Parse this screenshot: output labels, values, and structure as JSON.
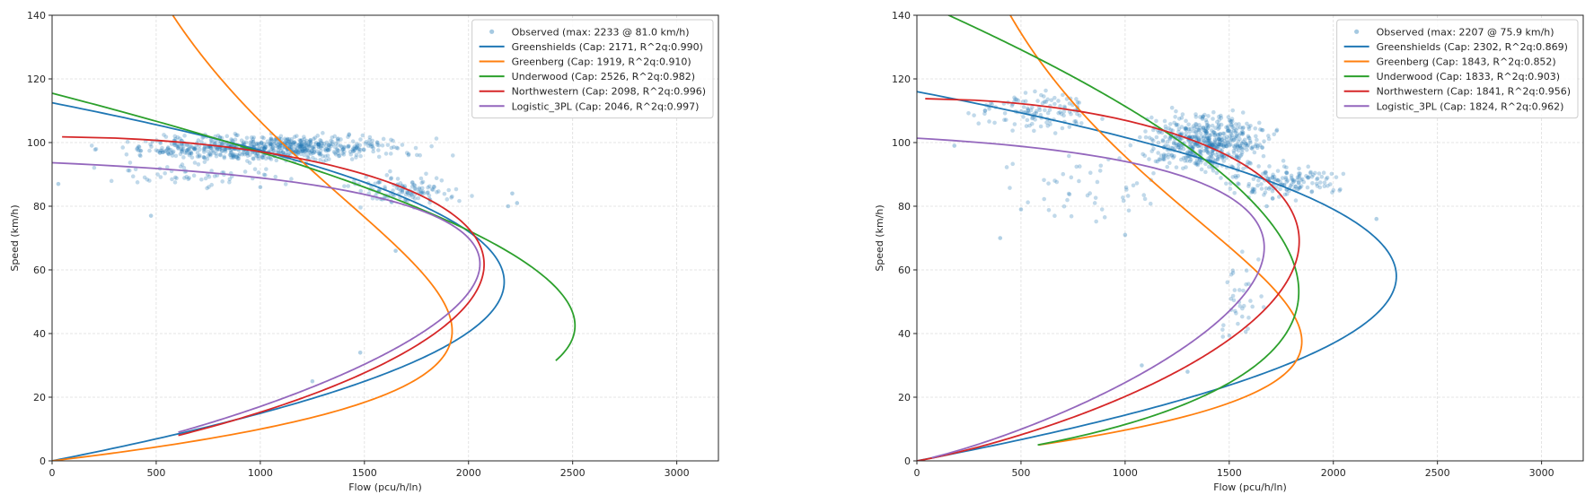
{
  "chart_data": [
    {
      "type": "scatter",
      "xlabel": "Flow (pcu/h/ln)",
      "ylabel": "Speed (km/h)",
      "xlim": [
        0,
        3200
      ],
      "ylim": [
        0,
        140
      ],
      "xticks": [
        0,
        500,
        1000,
        1500,
        2000,
        2500,
        3000
      ],
      "yticks": [
        0,
        20,
        40,
        60,
        80,
        100,
        120,
        140
      ],
      "grid": true,
      "legend_position": "top-right",
      "observed": {
        "label": "Observed (max: 2233 @ 81.0 km/h)",
        "color": "#1f77b4",
        "clusters": [
          {
            "x": [
              100,
              1950
            ],
            "y": [
              93,
              104
            ],
            "n": 700
          },
          {
            "x": [
              1300,
              2100
            ],
            "y": [
              78,
              92
            ],
            "n": 120
          },
          {
            "x": [
              100,
              1300
            ],
            "y": [
              85,
              95
            ],
            "n": 60
          }
        ],
        "points": [
          {
            "x": 2233,
            "y": 81
          },
          {
            "x": 2210,
            "y": 84
          },
          {
            "x": 2190,
            "y": 80
          },
          {
            "x": 475,
            "y": 77
          },
          {
            "x": 1480,
            "y": 34
          },
          {
            "x": 1250,
            "y": 25
          },
          {
            "x": 1650,
            "y": 66
          },
          {
            "x": 30,
            "y": 87
          },
          {
            "x": 1000,
            "y": 86
          },
          {
            "x": 1700,
            "y": 82
          }
        ]
      },
      "series": [
        {
          "name": "Greenshields (Cap: 2171, R^2q:0.990)",
          "model": "greenshields",
          "color": "#1f77b4",
          "vf": 112.5,
          "kj": 77.2,
          "smin": 0
        },
        {
          "name": "Greenberg (Cap: 1919, R^2q:0.910)",
          "model": "greenberg",
          "color": "#ff7f0e",
          "vc": 40.8,
          "kj": 128.0,
          "smin": 0,
          "smax": 140
        },
        {
          "name": "Underwood (Cap: 2526, R^2q:0.982)",
          "model": "underwood",
          "color": "#2ca02c",
          "vf": 115.5,
          "kc": 59.1,
          "smin": 31.5
        },
        {
          "name": "Northwestern (Cap: 2098, R^2q:0.996)",
          "model": "northwestern",
          "color": "#d62728",
          "vf": 101.8,
          "kc": 33.6,
          "smin": 8
        },
        {
          "name": "Logistic_3PL (Cap: 2046, R^2q:0.997)",
          "model": "logistic",
          "color": "#9467bd",
          "vf": 97.0,
          "k0": 40.0,
          "d": 12.0,
          "smin": 9
        }
      ]
    },
    {
      "type": "scatter",
      "xlabel": "Flow (pcu/h/ln)",
      "ylabel": "Speed (km/h)",
      "xlim": [
        0,
        3200
      ],
      "ylim": [
        0,
        140
      ],
      "xticks": [
        0,
        500,
        1000,
        1500,
        2000,
        2500,
        3000
      ],
      "yticks": [
        0,
        20,
        40,
        60,
        80,
        100,
        120,
        140
      ],
      "grid": true,
      "legend_position": "top-right",
      "observed": {
        "label": "Observed (max: 2207 @ 75.9 km/h)",
        "color": "#1f77b4",
        "clusters": [
          {
            "x": [
              1000,
              1800
            ],
            "y": [
              88,
              112
            ],
            "n": 550
          },
          {
            "x": [
              200,
              1000
            ],
            "y": [
              100,
              120
            ],
            "n": 120
          },
          {
            "x": [
              1400,
              2150
            ],
            "y": [
              80,
              95
            ],
            "n": 150
          },
          {
            "x": [
              300,
              1300
            ],
            "y": [
              70,
              100
            ],
            "n": 50
          },
          {
            "x": [
              1400,
              1700
            ],
            "y": [
              28,
              70
            ],
            "n": 35
          }
        ],
        "points": [
          {
            "x": 2207,
            "y": 76
          },
          {
            "x": 400,
            "y": 70
          },
          {
            "x": 180,
            "y": 99
          },
          {
            "x": 1000,
            "y": 71
          },
          {
            "x": 1080,
            "y": 30
          },
          {
            "x": 1300,
            "y": 28
          },
          {
            "x": 1680,
            "y": 80
          },
          {
            "x": 500,
            "y": 79
          }
        ]
      },
      "series": [
        {
          "name": "Greenshields (Cap: 2302, R^2q:0.869)",
          "model": "greenshields",
          "color": "#1f77b4",
          "vf": 116.0,
          "kj": 79.4,
          "smin": 0
        },
        {
          "name": "Greenberg (Cap: 1843, R^2q:0.852)",
          "model": "greenberg",
          "color": "#ff7f0e",
          "vc": 37.5,
          "kj": 134.0,
          "smin": 5,
          "smax": 140
        },
        {
          "name": "Underwood (Cap: 1833, R^2q:0.903)",
          "model": "underwood",
          "color": "#2ca02c",
          "vf": 144.5,
          "kc": 34.5,
          "smin": 5
        },
        {
          "name": "Northwestern (Cap: 1841, R^2q:0.956)",
          "model": "northwestern",
          "color": "#d62728",
          "vf": 113.8,
          "kc": 26.6,
          "smin": 0
        },
        {
          "name": "Logistic_3PL (Cap: 1824, R^2q:0.962)",
          "model": "logistic",
          "color": "#9467bd",
          "vf": 105.0,
          "k0": 30.0,
          "d": 9.0,
          "smin": 1
        }
      ]
    }
  ]
}
